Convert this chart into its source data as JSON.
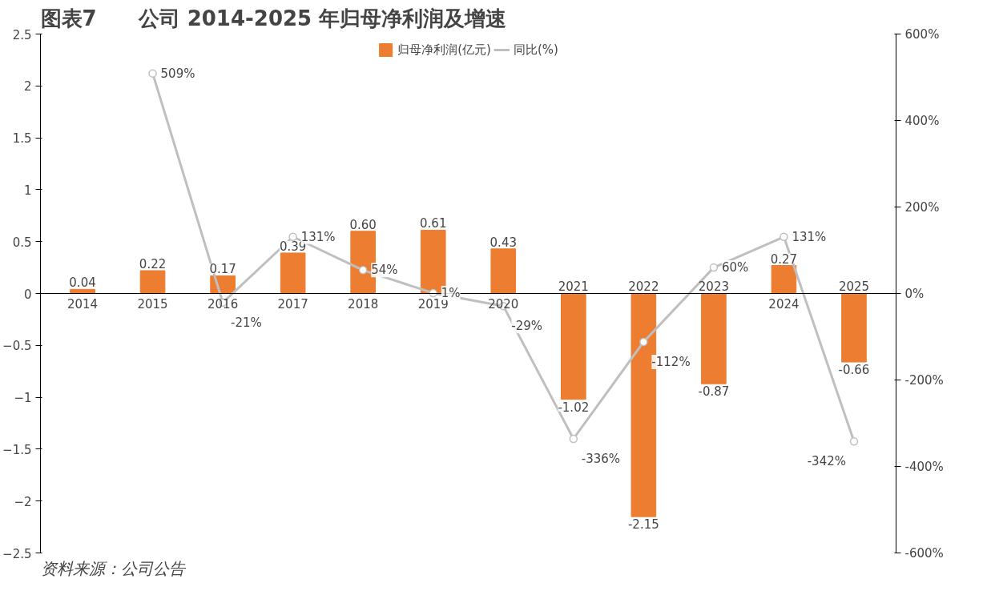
{
  "chart_data": {
    "type": "bar",
    "title": "图表7　　公司 2014-2025 年归母净利润及增速",
    "categories": [
      "2014",
      "2015",
      "2016",
      "2017",
      "2018",
      "2019",
      "2020",
      "2021",
      "2022",
      "2023",
      "2024",
      "2025"
    ],
    "series": [
      {
        "name": "归母净利润(亿元)",
        "type": "bar",
        "color": "#ed7d31",
        "values": [
          0.04,
          0.22,
          0.17,
          0.39,
          0.6,
          0.61,
          0.43,
          -1.02,
          -2.15,
          -0.87,
          0.27,
          -0.66
        ],
        "value_labels": [
          "0.04",
          "0.22",
          "0.17",
          "0.39",
          "0.60",
          "0.61",
          "0.43",
          "-1.02",
          "-2.15",
          "-0.87",
          "0.27",
          "-0.66"
        ]
      },
      {
        "name": "同比(%)",
        "type": "line",
        "axis": "y2",
        "color": "#bfbfbf",
        "marker": "circle",
        "values": [
          null,
          509,
          -21,
          131,
          54,
          1,
          -29,
          -336,
          -112,
          60,
          131,
          -342
        ],
        "value_labels": [
          null,
          "509%",
          "-21%",
          "131%",
          "54%",
          "1%",
          "-29%",
          "-336%",
          "-112%",
          "60%",
          "131%",
          "-342%"
        ]
      }
    ],
    "ylim": [
      -2.5,
      2.5
    ],
    "yticks": [
      -2.5,
      -2.0,
      -1.5,
      -1.0,
      -0.5,
      0.0,
      0.5,
      1.0,
      1.5,
      2.0,
      2.5
    ],
    "y2lim": [
      -600,
      600
    ],
    "y2ticks": [
      {
        "value": -600,
        "label": "-600%"
      },
      {
        "value": -400,
        "label": "-400%"
      },
      {
        "value": -200,
        "label": "-200%"
      },
      {
        "value": 0,
        "label": "0%"
      },
      {
        "value": 200,
        "label": "200%"
      },
      {
        "value": 400,
        "label": "400%"
      },
      {
        "value": 600,
        "label": "600%"
      }
    ],
    "legend": "top",
    "grid": false,
    "annotations": [
      "资料来源：公司公告"
    ]
  }
}
